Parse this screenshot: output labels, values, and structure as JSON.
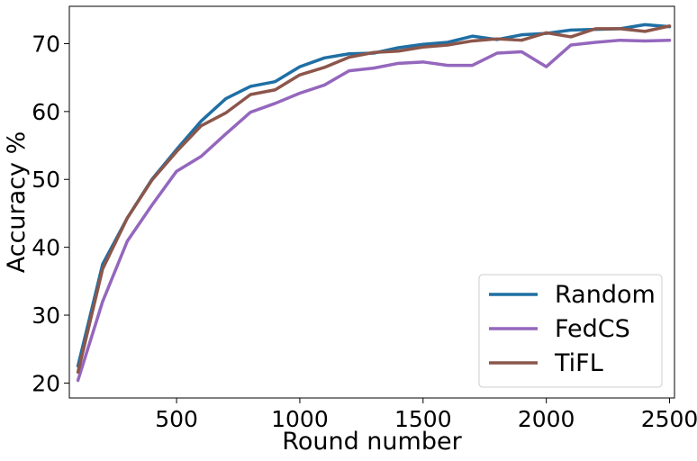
{
  "chart_data": {
    "type": "line",
    "xlabel": "Round number",
    "ylabel": "Accuracy %",
    "xlim": [
      65,
      2520
    ],
    "ylim": [
      17.8,
      75.5
    ],
    "xticks": [
      500,
      1000,
      1500,
      2000,
      2500
    ],
    "yticks": [
      20,
      30,
      40,
      50,
      60,
      70
    ],
    "grid": false,
    "legend_position": "bottom-right",
    "x": [
      100,
      200,
      300,
      400,
      500,
      600,
      700,
      800,
      900,
      1000,
      1100,
      1200,
      1300,
      1400,
      1500,
      1600,
      1700,
      1800,
      1900,
      2000,
      2100,
      2200,
      2300,
      2400,
      2500
    ],
    "series": [
      {
        "name": "Random",
        "color": "#1f6fa4",
        "values": [
          22.5,
          37.5,
          44.3,
          50.0,
          54.4,
          58.6,
          61.9,
          63.7,
          64.4,
          66.6,
          67.9,
          68.5,
          68.6,
          69.4,
          69.9,
          70.2,
          71.1,
          70.6,
          71.3,
          71.5,
          72.0,
          72.1,
          72.2,
          72.8,
          72.5
        ]
      },
      {
        "name": "FedCS",
        "color": "#9467bd",
        "values": [
          20.4,
          32.0,
          40.9,
          46.2,
          51.2,
          53.4,
          56.7,
          59.9,
          61.2,
          62.7,
          63.9,
          66.0,
          66.4,
          67.1,
          67.3,
          66.8,
          66.8,
          68.6,
          68.8,
          66.6,
          69.8,
          70.2,
          70.5,
          70.4,
          70.5
        ]
      },
      {
        "name": "TiFL",
        "color": "#8c564b",
        "values": [
          21.6,
          36.8,
          44.3,
          49.9,
          54.1,
          57.9,
          59.8,
          62.5,
          63.2,
          65.4,
          66.5,
          68.0,
          68.7,
          68.9,
          69.5,
          69.8,
          70.4,
          70.7,
          70.5,
          71.6,
          71.0,
          72.2,
          72.2,
          71.8,
          72.6
        ]
      }
    ]
  }
}
